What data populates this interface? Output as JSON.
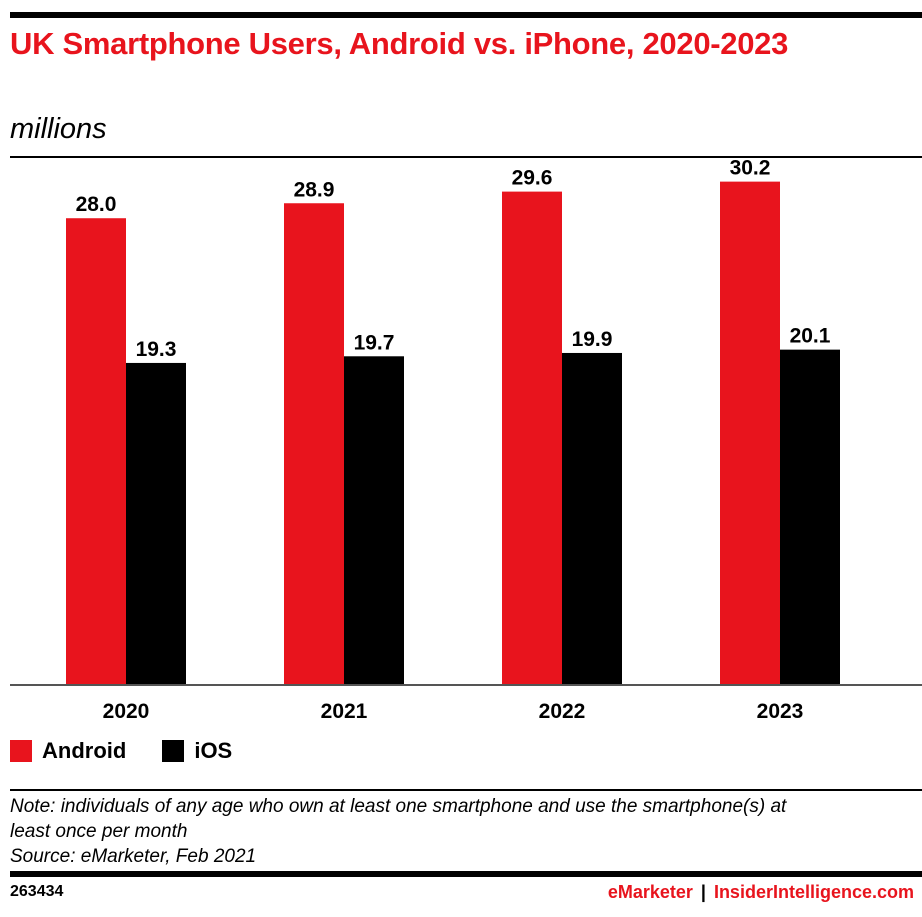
{
  "header": {
    "title": "UK Smartphone Users, Android vs. iPhone, 2020-2023",
    "subtitle": "millions"
  },
  "colors": {
    "android": "#e8141d",
    "ios": "#000000",
    "title": "#e8141d"
  },
  "legend": [
    {
      "label": "Android",
      "color": "#e8141d"
    },
    {
      "label": "iOS",
      "color": "#000000"
    }
  ],
  "chart_data": {
    "type": "bar",
    "title": "UK Smartphone Users, Android vs. iPhone, 2020-2023",
    "subtitle": "millions",
    "categories": [
      "2020",
      "2021",
      "2022",
      "2023"
    ],
    "series": [
      {
        "name": "Android",
        "color": "#e8141d",
        "values": [
          28.0,
          28.9,
          29.6,
          30.2
        ],
        "labels": [
          "28.0",
          "28.9",
          "29.6",
          "30.2"
        ]
      },
      {
        "name": "iOS",
        "color": "#000000",
        "values": [
          19.3,
          19.7,
          19.9,
          20.1
        ],
        "labels": [
          "19.3",
          "19.7",
          "19.9",
          "20.1"
        ]
      }
    ],
    "xlabel": "",
    "ylabel": "",
    "ylim": [
      0,
      31.5
    ],
    "grid": false,
    "legend_position": "bottom-left"
  },
  "note": {
    "line1": "Note: individuals of any age who own at least one smartphone and use the smartphone(s) at",
    "line2": "least once per month",
    "source": "Source: eMarketer, Feb 2021"
  },
  "footer": {
    "chart_id": "263434",
    "brand": "eMarketer",
    "separator": "|",
    "site": "InsiderIntelligence.com"
  }
}
